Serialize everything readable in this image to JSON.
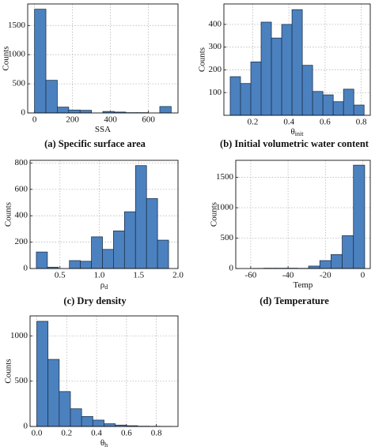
{
  "chart_data": [
    {
      "type": "histogram",
      "xlabel": "SSA",
      "ylabel": "Counts",
      "caption": "(a) Specific surface area",
      "bins": [
        0,
        60,
        120,
        180,
        240,
        300,
        360,
        420,
        480,
        540,
        600,
        660,
        720
      ],
      "counts": [
        1780,
        560,
        100,
        50,
        45,
        0,
        25,
        15,
        5,
        5,
        0,
        110
      ],
      "xlim": [
        -36,
        756
      ],
      "ylim": [
        0,
        1870
      ],
      "xticks": [
        0,
        200,
        400,
        600
      ],
      "yticks": [
        0,
        500,
        1000,
        1500
      ],
      "color": "#4c81bf",
      "grid": true
    },
    {
      "type": "histogram",
      "xlabel": "θ",
      "xlabel_sub": "init",
      "ylabel": "Counts",
      "caption": "(b) Initial volumetric water content",
      "bins": [
        0.075,
        0.132,
        0.189,
        0.246,
        0.303,
        0.36,
        0.417,
        0.474,
        0.531,
        0.588,
        0.645,
        0.702,
        0.759,
        0.816
      ],
      "counts": [
        170,
        140,
        235,
        410,
        340,
        400,
        465,
        220,
        105,
        90,
        60,
        115,
        45
      ],
      "xlim": [
        0.04,
        0.85
      ],
      "ylim": [
        0,
        490
      ],
      "xticks": [
        0.2,
        0.4,
        0.6,
        0.8
      ],
      "yticks": [
        100,
        200,
        300,
        400
      ],
      "color": "#4c81bf",
      "grid": true
    },
    {
      "type": "histogram",
      "xlabel": "ρ",
      "xlabel_sub": "d",
      "ylabel": "Counts",
      "caption": "(c) Dry density",
      "bins": [
        0.2,
        0.34,
        0.48,
        0.62,
        0.76,
        0.9,
        1.04,
        1.18,
        1.32,
        1.46,
        1.6,
        1.74,
        1.88
      ],
      "counts": [
        125,
        10,
        0,
        60,
        55,
        240,
        145,
        285,
        430,
        780,
        530,
        215
      ],
      "xlim": [
        0.12,
        2.0
      ],
      "ylim": [
        0,
        820
      ],
      "xticks": [
        0.5,
        {
          "value": 1,
          "label": "1.0"
        },
        1.5,
        {
          "value": 2,
          "label": "2.0"
        }
      ],
      "yticks": [
        0,
        200,
        400,
        600,
        800
      ],
      "color": "#4c81bf",
      "grid": true
    },
    {
      "type": "histogram",
      "xlabel": "Temp",
      "ylabel": "Counts",
      "caption": "(d) Temperature",
      "bins": [
        -65,
        -59,
        -53,
        -47,
        -41,
        -35,
        -29,
        -23,
        -17,
        -11,
        -5,
        1
      ],
      "counts": [
        0,
        2,
        5,
        5,
        5,
        3,
        40,
        130,
        230,
        540,
        1700
      ],
      "xlim": [
        -68,
        4
      ],
      "ylim": [
        0,
        1780
      ],
      "xticks": [
        -60,
        -40,
        -20,
        0
      ],
      "yticks": [
        0,
        500,
        1000,
        1500
      ],
      "color": "#4c81bf",
      "grid": true
    },
    {
      "type": "histogram",
      "xlabel": "θ",
      "xlabel_sub": "h",
      "ylabel": "Counts",
      "bins": [
        0,
        0.075,
        0.15,
        0.225,
        0.3,
        0.375,
        0.45,
        0.525,
        0.6,
        0.675,
        0.75,
        0.825,
        0.9
      ],
      "counts": [
        1160,
        740,
        385,
        195,
        110,
        70,
        30,
        15,
        8,
        3,
        2,
        1
      ],
      "xlim": [
        -0.045,
        0.945
      ],
      "ylim": [
        0,
        1220
      ],
      "xticks": [
        {
          "value": 0,
          "label": "0.0"
        },
        0.2,
        0.4,
        0.6,
        0.8
      ],
      "yticks": [
        0,
        500,
        1000
      ],
      "color": "#4c81bf",
      "grid": true
    }
  ]
}
